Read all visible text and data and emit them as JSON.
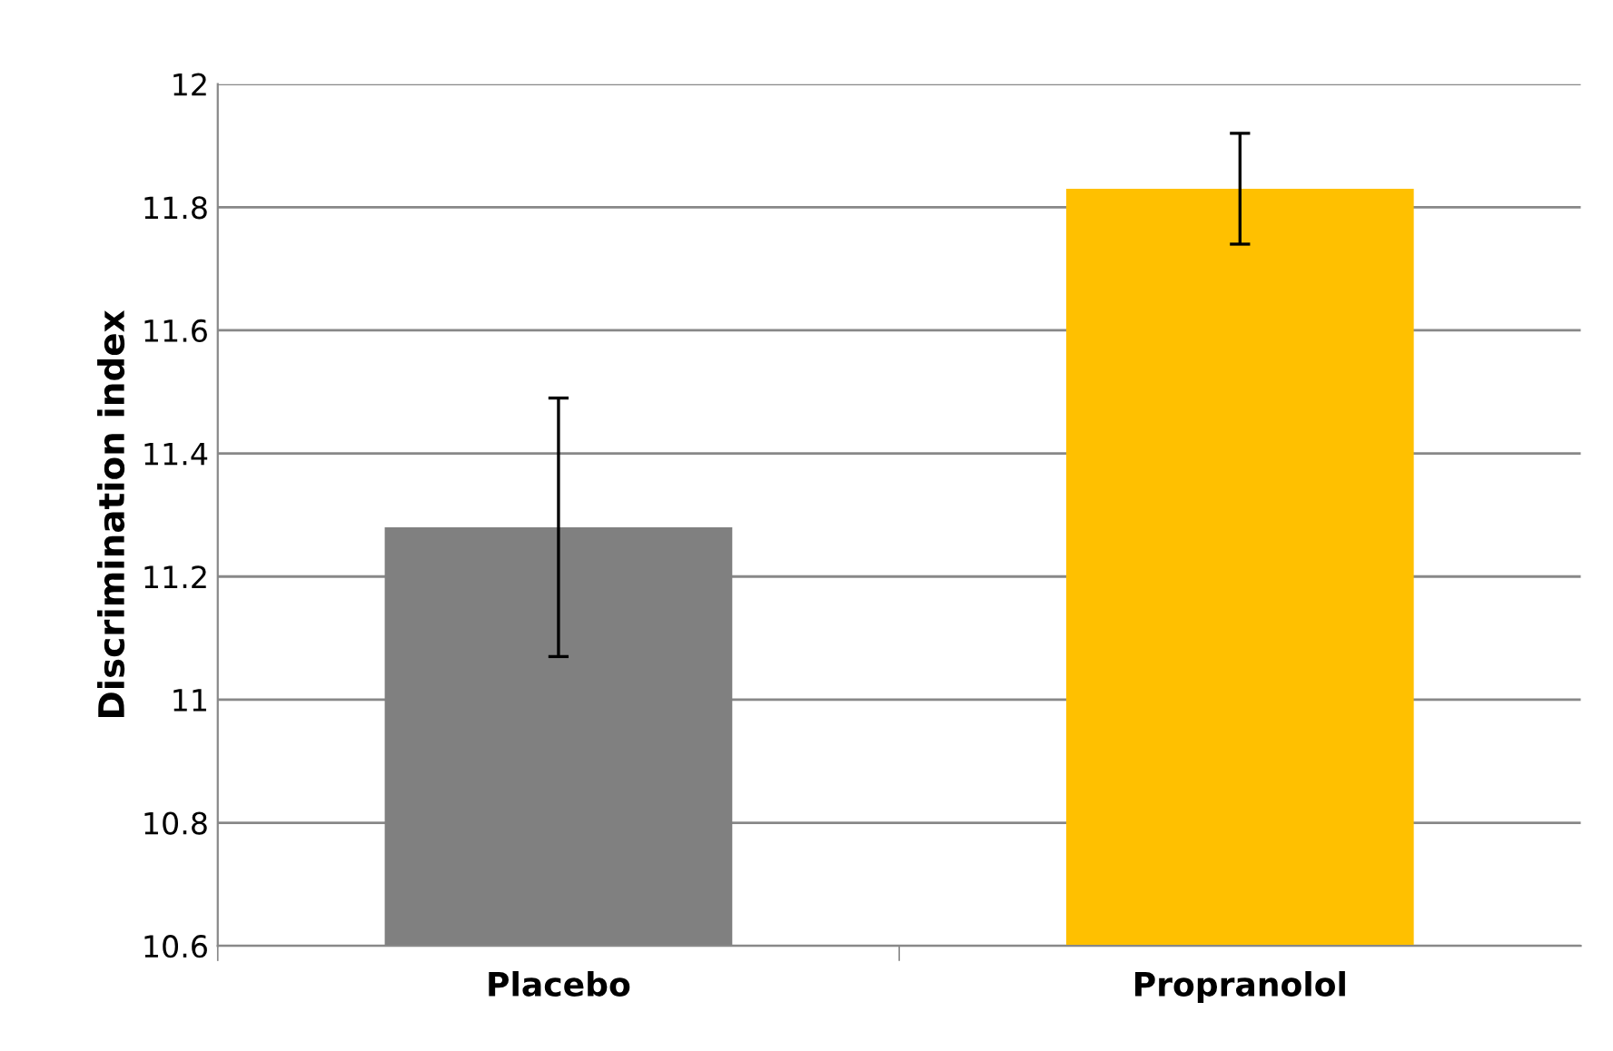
{
  "chart_data": {
    "type": "bar",
    "ylabel": "Discrimination index",
    "categories": [
      "Placebo",
      "Propranolol"
    ],
    "values": [
      11.28,
      11.83
    ],
    "colors": [
      "#808080",
      "#ffc000"
    ],
    "errors": [
      0.21,
      0.09
    ],
    "ylim": [
      10.6,
      12
    ],
    "yticks": [
      10.6,
      10.8,
      11,
      11.2,
      11.4,
      11.6,
      11.8,
      12
    ],
    "grid": "y",
    "legend": false
  }
}
